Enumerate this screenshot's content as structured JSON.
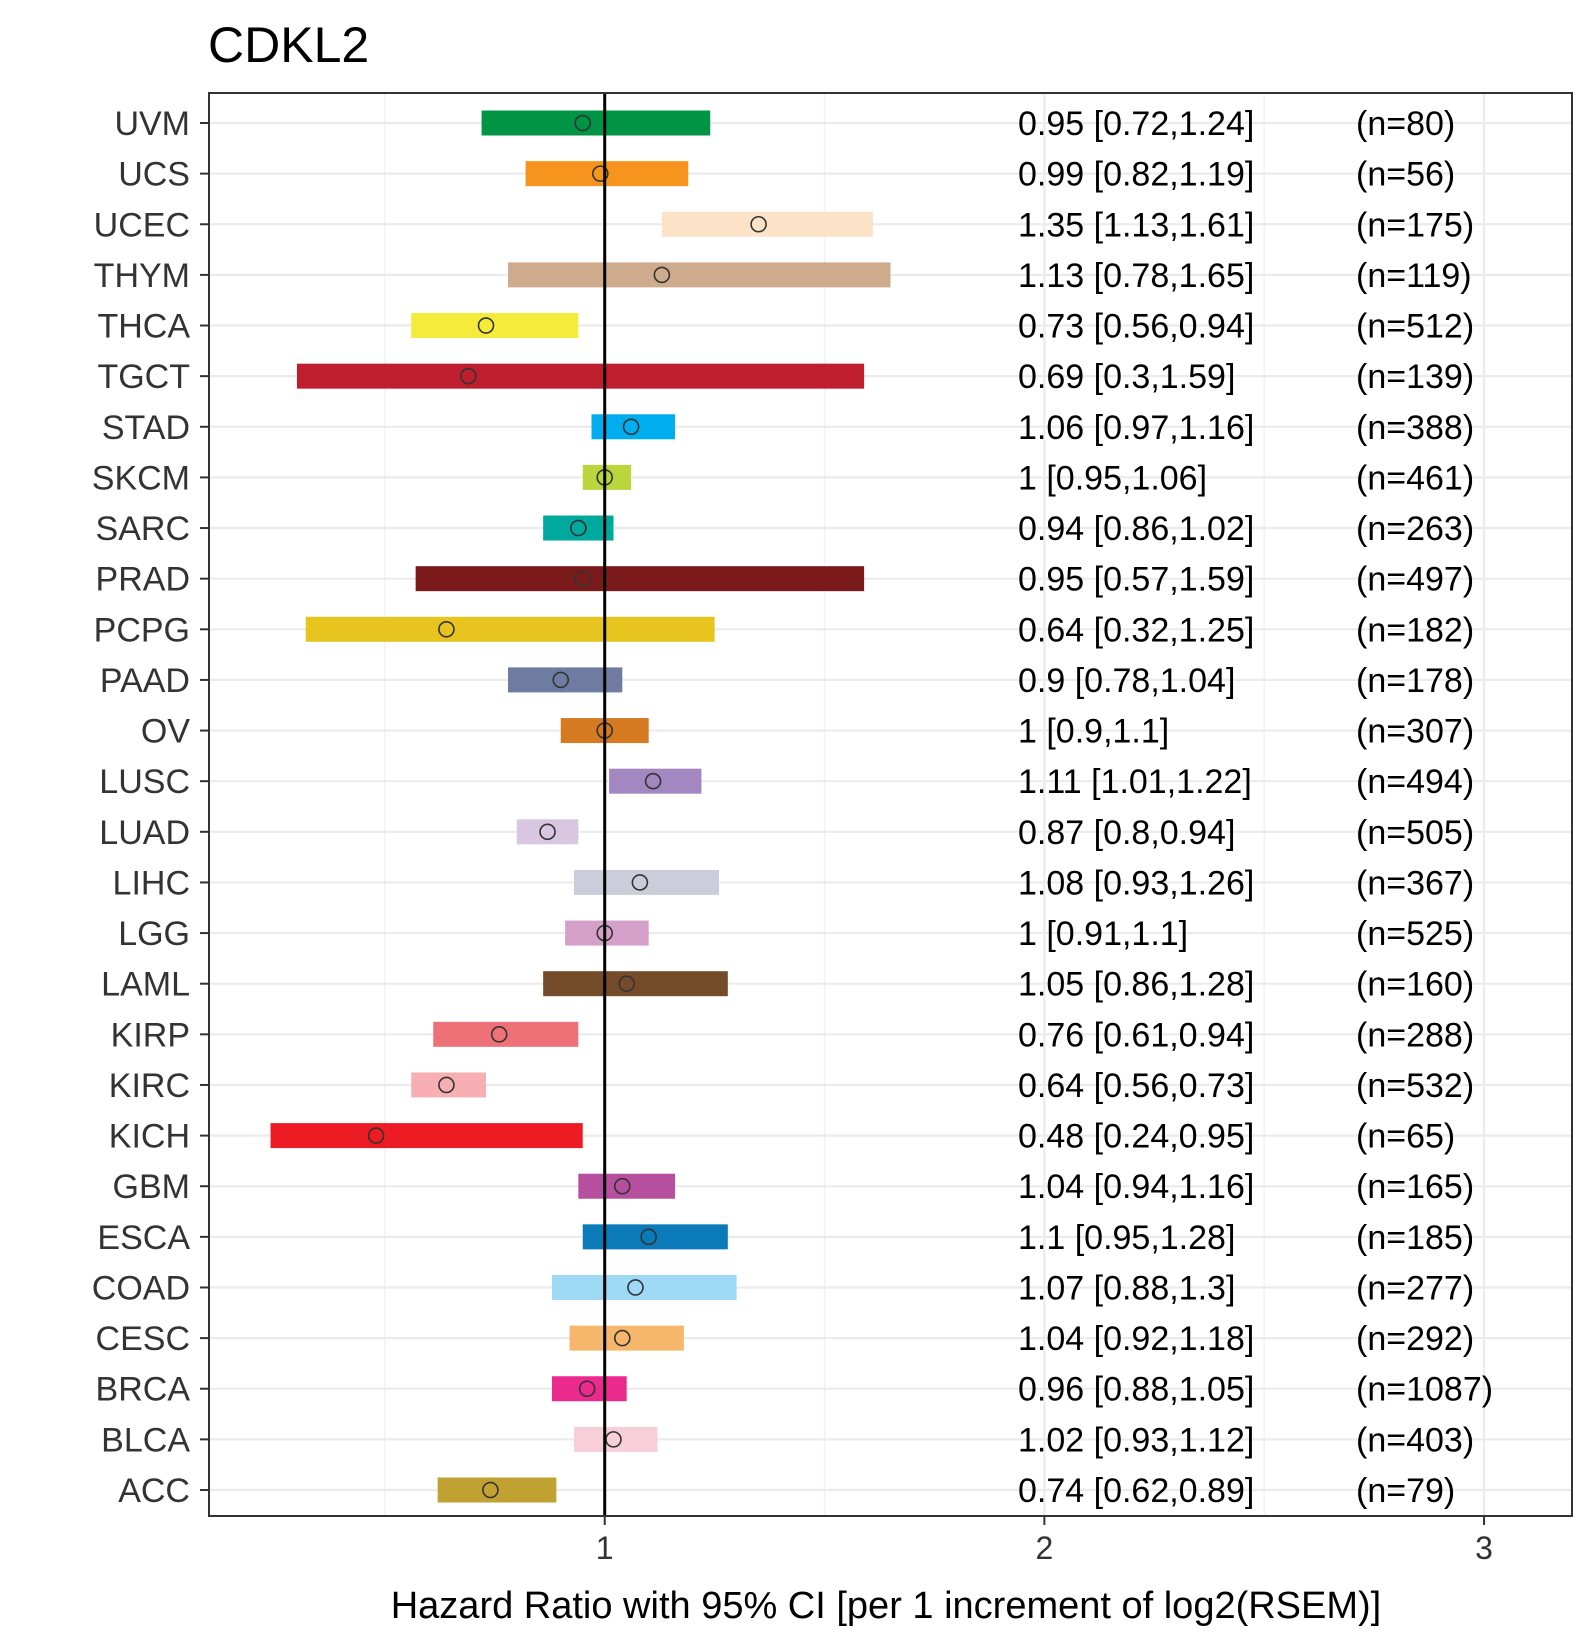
{
  "chart_data": {
    "type": "forest",
    "title": "CDKL2",
    "xlabel": "Hazard Ratio with 95% CI [per 1 increment of log2(RSEM)]",
    "ylabel": "",
    "xlim": [
      0.1,
      3.2
    ],
    "xticks": [
      1,
      2,
      3
    ],
    "xtick_labels": [
      "1",
      "2",
      "3"
    ],
    "reference_line": 1,
    "grid": true,
    "legend": "none",
    "rows": [
      {
        "cancer": "UVM",
        "hr": 0.95,
        "low": 0.72,
        "high": 1.24,
        "stat": "0.95 [0.72,1.24]",
        "n": "(n=80)",
        "color": "#009444"
      },
      {
        "cancer": "UCS",
        "hr": 0.99,
        "low": 0.82,
        "high": 1.19,
        "stat": "0.99 [0.82,1.19]",
        "n": "(n=56)",
        "color": "#F7941D"
      },
      {
        "cancer": "UCEC",
        "hr": 1.35,
        "low": 1.13,
        "high": 1.61,
        "stat": "1.35 [1.13,1.61]",
        "n": "(n=175)",
        "color": "#FCE2C6"
      },
      {
        "cancer": "THYM",
        "hr": 1.13,
        "low": 0.78,
        "high": 1.65,
        "stat": "1.13 [0.78,1.65]",
        "n": "(n=119)",
        "color": "#CFAB8E"
      },
      {
        "cancer": "THCA",
        "hr": 0.73,
        "low": 0.56,
        "high": 0.94,
        "stat": "0.73 [0.56,0.94]",
        "n": "(n=512)",
        "color": "#F5EB3A"
      },
      {
        "cancer": "TGCT",
        "hr": 0.69,
        "low": 0.3,
        "high": 1.59,
        "stat": "0.69 [0.3,1.59]",
        "n": "(n=139)",
        "color": "#BE1E2D"
      },
      {
        "cancer": "STAD",
        "hr": 1.06,
        "low": 0.97,
        "high": 1.16,
        "stat": "1.06 [0.97,1.16]",
        "n": "(n=388)",
        "color": "#00AEEF"
      },
      {
        "cancer": "SKCM",
        "hr": 1,
        "low": 0.95,
        "high": 1.06,
        "stat": "1 [0.95,1.06]",
        "n": "(n=461)",
        "color": "#BBD53D"
      },
      {
        "cancer": "SARC",
        "hr": 0.94,
        "low": 0.86,
        "high": 1.02,
        "stat": "0.94 [0.86,1.02]",
        "n": "(n=263)",
        "color": "#00A99D"
      },
      {
        "cancer": "PRAD",
        "hr": 0.95,
        "low": 0.57,
        "high": 1.59,
        "stat": "0.95 [0.57,1.59]",
        "n": "(n=497)",
        "color": "#7A1A1A"
      },
      {
        "cancer": "PCPG",
        "hr": 0.64,
        "low": 0.32,
        "high": 1.25,
        "stat": "0.64 [0.32,1.25]",
        "n": "(n=182)",
        "color": "#E8C51E"
      },
      {
        "cancer": "PAAD",
        "hr": 0.9,
        "low": 0.78,
        "high": 1.04,
        "stat": "0.9 [0.78,1.04]",
        "n": "(n=178)",
        "color": "#6F7CA1"
      },
      {
        "cancer": "OV",
        "hr": 1,
        "low": 0.9,
        "high": 1.1,
        "stat": "1 [0.9,1.1]",
        "n": "(n=307)",
        "color": "#D67A22"
      },
      {
        "cancer": "LUSC",
        "hr": 1.11,
        "low": 1.01,
        "high": 1.22,
        "stat": "1.11 [1.01,1.22]",
        "n": "(n=494)",
        "color": "#A287C0"
      },
      {
        "cancer": "LUAD",
        "hr": 0.87,
        "low": 0.8,
        "high": 0.94,
        "stat": "0.87 [0.8,0.94]",
        "n": "(n=505)",
        "color": "#D9C6E0"
      },
      {
        "cancer": "LIHC",
        "hr": 1.08,
        "low": 0.93,
        "high": 1.26,
        "stat": "1.08 [0.93,1.26]",
        "n": "(n=367)",
        "color": "#CBCDDB"
      },
      {
        "cancer": "LGG",
        "hr": 1,
        "low": 0.91,
        "high": 1.1,
        "stat": "1 [0.91,1.1]",
        "n": "(n=525)",
        "color": "#D4A0CA"
      },
      {
        "cancer": "LAML",
        "hr": 1.05,
        "low": 0.86,
        "high": 1.28,
        "stat": "1.05 [0.86,1.28]",
        "n": "(n=160)",
        "color": "#754C29"
      },
      {
        "cancer": "KIRP",
        "hr": 0.76,
        "low": 0.61,
        "high": 0.94,
        "stat": "0.76 [0.61,0.94]",
        "n": "(n=288)",
        "color": "#EE7177"
      },
      {
        "cancer": "KIRC",
        "hr": 0.64,
        "low": 0.56,
        "high": 0.73,
        "stat": "0.64 [0.56,0.73]",
        "n": "(n=532)",
        "color": "#F7AFB3"
      },
      {
        "cancer": "KICH",
        "hr": 0.48,
        "low": 0.24,
        "high": 0.95,
        "stat": "0.48 [0.24,0.95]",
        "n": "(n=65)",
        "color": "#ED1C24"
      },
      {
        "cancer": "GBM",
        "hr": 1.04,
        "low": 0.94,
        "high": 1.16,
        "stat": "1.04 [0.94,1.16]",
        "n": "(n=165)",
        "color": "#B54F9E"
      },
      {
        "cancer": "ESCA",
        "hr": 1.1,
        "low": 0.95,
        "high": 1.28,
        "stat": "1.1 [0.95,1.28]",
        "n": "(n=185)",
        "color": "#0A7AB8"
      },
      {
        "cancer": "COAD",
        "hr": 1.07,
        "low": 0.88,
        "high": 1.3,
        "stat": "1.07 [0.88,1.3]",
        "n": "(n=277)",
        "color": "#9ED9F5"
      },
      {
        "cancer": "CESC",
        "hr": 1.04,
        "low": 0.92,
        "high": 1.18,
        "stat": "1.04 [0.92,1.18]",
        "n": "(n=292)",
        "color": "#F6B66C"
      },
      {
        "cancer": "BRCA",
        "hr": 0.96,
        "low": 0.88,
        "high": 1.05,
        "stat": "0.96 [0.88,1.05]",
        "n": "(n=1087)",
        "color": "#EC2A8E"
      },
      {
        "cancer": "BLCA",
        "hr": 1.02,
        "low": 0.93,
        "high": 1.12,
        "stat": "1.02 [0.93,1.12]",
        "n": "(n=403)",
        "color": "#F8CFD8"
      },
      {
        "cancer": "ACC",
        "hr": 0.74,
        "low": 0.62,
        "high": 0.89,
        "stat": "0.74 [0.62,0.89]",
        "n": "(n=79)",
        "color": "#C1A132"
      }
    ]
  }
}
